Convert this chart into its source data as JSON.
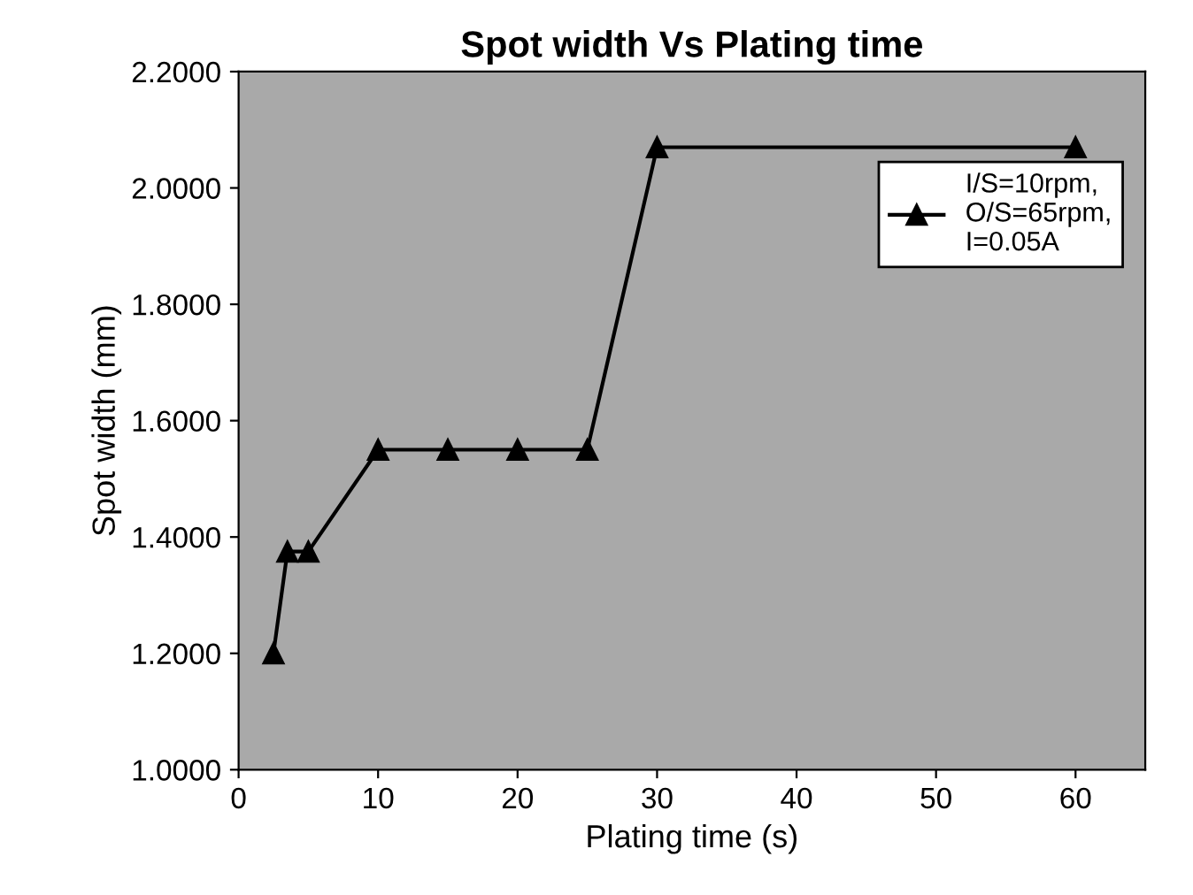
{
  "chart_data": {
    "type": "line",
    "title": "Spot width Vs Plating time",
    "xlabel": "Plating time (s)",
    "ylabel": "Spot width (mm)",
    "x": [
      2.5,
      3.5,
      5,
      10,
      15,
      20,
      25,
      30,
      60
    ],
    "series": [
      {
        "name": "I/S=10rpm,\nO/S=65rpm,\nI=0.05A",
        "color": "#000000",
        "values": [
          1.2,
          1.375,
          1.375,
          1.55,
          1.55,
          1.55,
          1.55,
          2.07,
          2.07
        ]
      }
    ],
    "xlim": [
      0,
      65
    ],
    "xticks": [
      0,
      10,
      20,
      30,
      40,
      50,
      60
    ],
    "ylim": [
      1.0,
      2.2
    ],
    "yticks": [
      {
        "value": 1.0,
        "label": "1.0000"
      },
      {
        "value": 1.2,
        "label": "1.2000"
      },
      {
        "value": 1.4,
        "label": "1.4000"
      },
      {
        "value": 1.6,
        "label": "1.6000"
      },
      {
        "value": 1.8,
        "label": "1.8000"
      },
      {
        "value": 2.0,
        "label": "2.0000"
      },
      {
        "value": 2.2,
        "label": "2.2000"
      }
    ],
    "marker": "triangle",
    "line_style": "solid",
    "grid": false,
    "legend": "top right"
  }
}
